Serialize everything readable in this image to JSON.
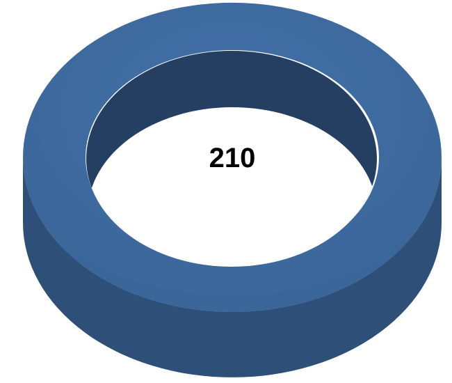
{
  "chart_data": {
    "type": "pie",
    "variant": "3d-doughnut",
    "slices": [
      {
        "value": 210,
        "color": "#3A6599"
      }
    ],
    "center_label": "210",
    "legend": "none",
    "colors": {
      "top": "#3A6599",
      "side_outer": "#2E5078",
      "side_inner": "#243F62"
    }
  }
}
